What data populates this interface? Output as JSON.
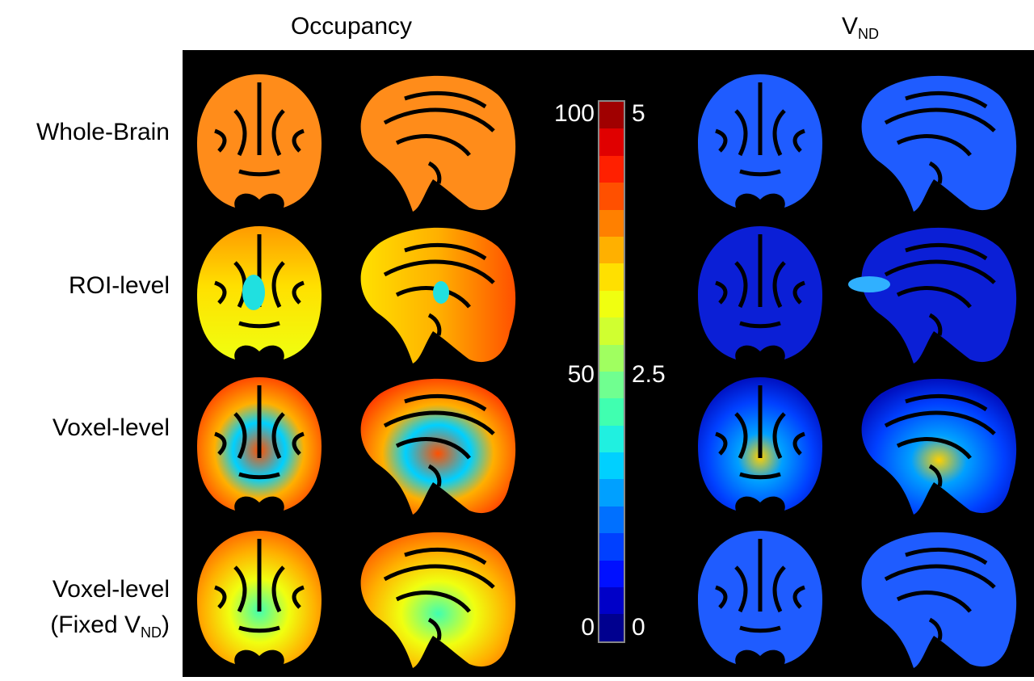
{
  "headers": {
    "occupancy": "Occupancy",
    "vnd_main": "V",
    "vnd_sub": "ND"
  },
  "rows": [
    {
      "label": "Whole-Brain"
    },
    {
      "label": "ROI-level"
    },
    {
      "label": "Voxel-level"
    },
    {
      "label_line1": "Voxel-level",
      "label_line2_pre": "(Fixed V",
      "label_line2_sub": "ND",
      "label_line2_post": ")"
    }
  ],
  "colorbar": {
    "colormap": "jet",
    "steps": 20,
    "left_ticks": [
      "100",
      "50",
      "0"
    ],
    "right_ticks": [
      "5",
      "2.5",
      "0"
    ],
    "colors": [
      "#00008f",
      "#0000c8",
      "#0010ff",
      "#0040ff",
      "#0070ff",
      "#00a0ff",
      "#00d0ff",
      "#20f0e0",
      "#40ffb0",
      "#70ff90",
      "#a0ff60",
      "#d0ff30",
      "#f0ff10",
      "#ffe000",
      "#ffb000",
      "#ff8000",
      "#ff5000",
      "#ff2000",
      "#e00000",
      "#a00000"
    ]
  },
  "panel_colors": {
    "background": "#000000",
    "occ_whole_brain": "#ff8c1a",
    "vnd_base": "#1f5cff",
    "vnd_dark": "#0b1fd6"
  }
}
